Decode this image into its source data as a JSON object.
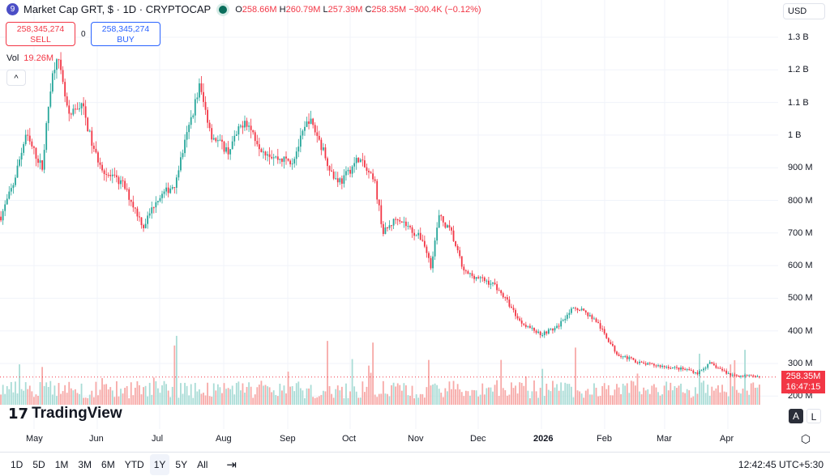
{
  "header": {
    "logo": "9",
    "title": "Market Cap GRT, $ · 1D · CRYPTOCAP",
    "o_label": "O",
    "o": "258.66M",
    "h_label": "H",
    "h": "260.79M",
    "l_label": "L",
    "l": "257.39M",
    "c_label": "C",
    "c": "258.35M",
    "change": "−300.4K (−0.12%)"
  },
  "trade": {
    "sell_price": "258,345,274",
    "sell_label": "SELL",
    "spread": "0",
    "buy_price": "258,345,274",
    "buy_label": "BUY"
  },
  "volume": {
    "label": "Vol",
    "value": "19.26M"
  },
  "currency": "USD",
  "price_axis": [
    "1.3 B",
    "1.2 B",
    "1.1 B",
    "1 B",
    "900 M",
    "800 M",
    "700 M",
    "600 M",
    "500 M",
    "400 M",
    "300 M",
    "200 M"
  ],
  "last_price": {
    "value": "258.35M",
    "countdown": "16:47:15"
  },
  "time_axis": [
    "May",
    "Jun",
    "Jul",
    "Aug",
    "Sep",
    "Oct",
    "Nov",
    "Dec",
    "2026",
    "Feb",
    "Mar",
    "Apr"
  ],
  "scale_buttons": {
    "auto": "A",
    "log": "L"
  },
  "brand": "TradingView",
  "ranges": [
    "1D",
    "5D",
    "1M",
    "3M",
    "6M",
    "YTD",
    "1Y",
    "5Y",
    "All"
  ],
  "active_range": "1Y",
  "clock": "12:42:45 UTC+5:30",
  "colors": {
    "up": "#26a69a",
    "down": "#f23645"
  },
  "chart_data": {
    "type": "candlestick",
    "unit": "M USD",
    "ylim": [
      200,
      1300
    ],
    "keypoints_day": [
      0,
      6,
      12,
      20,
      24,
      27,
      33,
      39,
      45,
      51,
      59,
      69,
      75,
      84,
      90,
      96,
      102,
      110,
      118,
      126,
      133,
      141,
      149,
      153,
      161,
      165,
      173,
      181,
      185,
      192,
      200,
      204,
      208,
      212,
      218,
      224,
      232,
      239,
      245,
      251,
      261,
      269,
      275,
      280,
      288,
      292,
      298,
      310,
      322,
      333,
      337,
      343,
      353,
      367
    ],
    "keypoints_close": [
      750,
      850,
      1000,
      900,
      1150,
      1250,
      1050,
      1100,
      950,
      880,
      850,
      720,
      800,
      850,
      1000,
      1150,
      1000,
      950,
      1050,
      960,
      930,
      920,
      1050,
      1000,
      870,
      860,
      930,
      850,
      700,
      750,
      700,
      680,
      600,
      750,
      700,
      580,
      560,
      540,
      490,
      430,
      390,
      410,
      460,
      470,
      430,
      390,
      330,
      300,
      290,
      280,
      270,
      300,
      265,
      258
    ]
  }
}
